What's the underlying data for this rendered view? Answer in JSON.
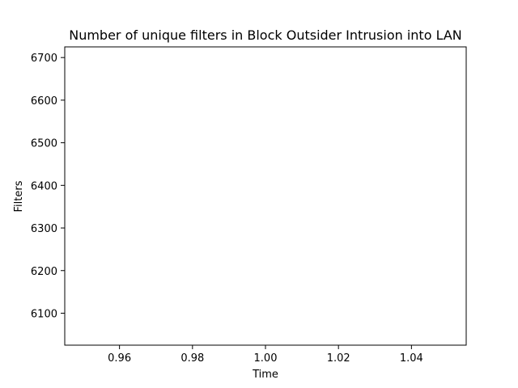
{
  "chart_data": {
    "type": "line",
    "title": "Number of unique filters in Block Outsider Intrusion into LAN",
    "xlabel": "Time",
    "ylabel": "Filters",
    "xlim": [
      0.945,
      1.055
    ],
    "ylim": [
      6025,
      6725
    ],
    "xticks": [
      0.96,
      0.98,
      1.0,
      1.02,
      1.04
    ],
    "xtick_labels": [
      "0.96",
      "0.98",
      "1.00",
      "1.02",
      "1.04"
    ],
    "yticks": [
      6100,
      6200,
      6300,
      6400,
      6500,
      6600,
      6700
    ],
    "ytick_labels": [
      "6100",
      "6200",
      "6300",
      "6400",
      "6500",
      "6600",
      "6700"
    ],
    "grid": false,
    "series": []
  }
}
